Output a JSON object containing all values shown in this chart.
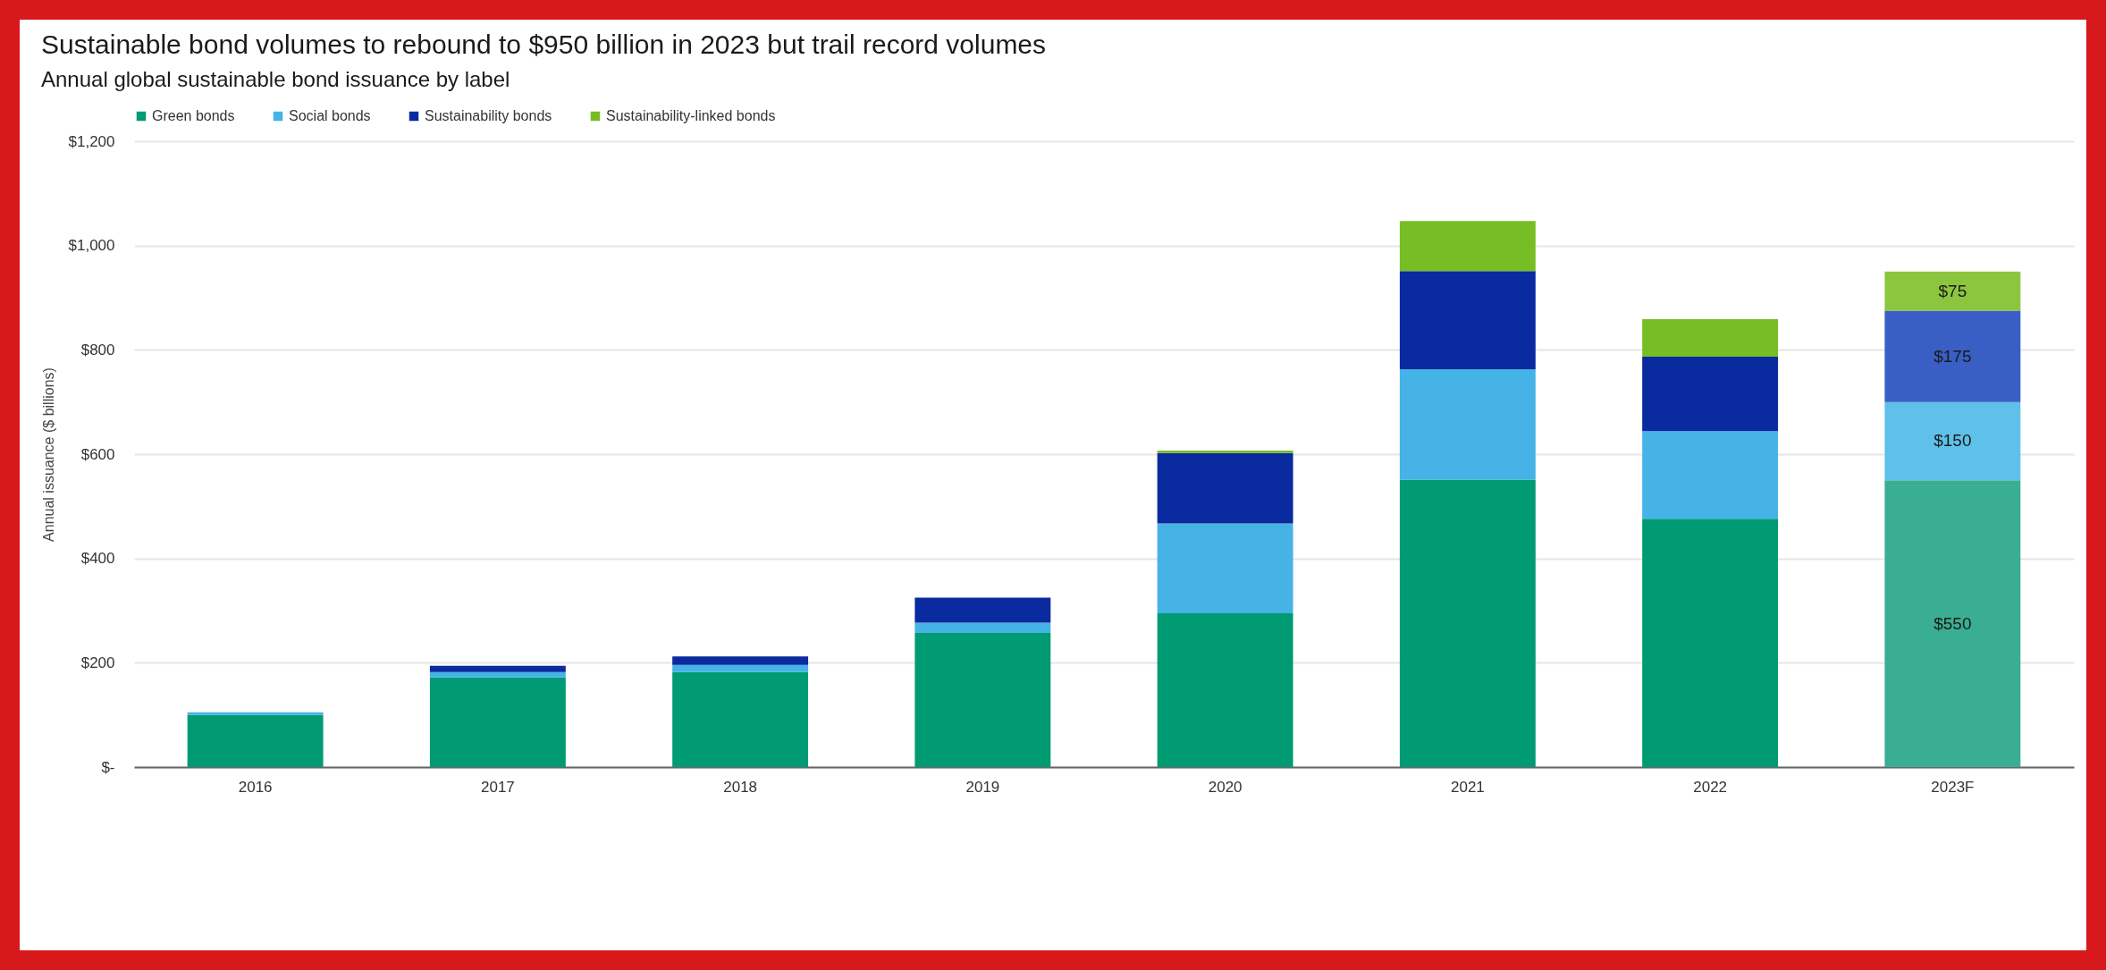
{
  "chart_data": {
    "type": "bar",
    "stacked": true,
    "title": "Sustainable bond volumes to rebound to $950 billion in 2023 but trail record volumes",
    "subtitle": "Annual global sustainable bond issuance by label",
    "ylabel": "Annual issuance ($ billions)",
    "categories": [
      "2016",
      "2017",
      "2018",
      "2019",
      "2020",
      "2021",
      "2022",
      "2023F"
    ],
    "series": [
      {
        "name": "Green bonds",
        "color": "#009b72",
        "colors": [
          "#009b72",
          "#009b72",
          "#009b72",
          "#009b72",
          "#009b72",
          "#009b72",
          "#009b72",
          "#3aae92"
        ],
        "values": [
          100,
          172,
          182,
          257,
          295,
          551,
          476,
          550
        ],
        "value_labels": [
          null,
          null,
          null,
          null,
          null,
          null,
          null,
          "$550"
        ]
      },
      {
        "name": "Social bonds",
        "color": "#45b3e6",
        "colors": [
          "#45b3e6",
          "#45b3e6",
          "#45b3e6",
          "#45b3e6",
          "#45b3e6",
          "#45b3e6",
          "#45b3e6",
          "#5fc0ea"
        ],
        "values": [
          5,
          10,
          14,
          20,
          172,
          212,
          168,
          150
        ],
        "value_labels": [
          null,
          null,
          null,
          null,
          null,
          null,
          null,
          "$150"
        ]
      },
      {
        "name": "Sustainability bonds",
        "color": "#0a2a9f",
        "colors": [
          "#0a2a9f",
          "#0a2a9f",
          "#0a2a9f",
          "#0a2a9f",
          "#0a2a9f",
          "#0a2a9f",
          "#0a2a9f",
          "#3a5fc4"
        ],
        "values": [
          0,
          12,
          16,
          48,
          135,
          188,
          143,
          175
        ],
        "value_labels": [
          null,
          null,
          null,
          null,
          null,
          null,
          null,
          "$175"
        ]
      },
      {
        "name": "Sustainability-linked bonds",
        "color": "#76be24",
        "colors": [
          "#76be24",
          "#76be24",
          "#76be24",
          "#76be24",
          "#76be24",
          "#76be24",
          "#76be24",
          "#8cc63f"
        ],
        "values": [
          0,
          0,
          0,
          0,
          5,
          96,
          72,
          75
        ],
        "value_labels": [
          null,
          null,
          null,
          null,
          null,
          null,
          null,
          "$75"
        ]
      }
    ],
    "ylim": [
      0,
      1200
    ],
    "yticks": [
      {
        "value": 0,
        "label": "$-"
      },
      {
        "value": 200,
        "label": "$200"
      },
      {
        "value": 400,
        "label": "$400"
      },
      {
        "value": 600,
        "label": "$600"
      },
      {
        "value": 800,
        "label": "$800"
      },
      {
        "value": 1000,
        "label": "$1,000"
      },
      {
        "value": 1200,
        "label": "$1,200"
      }
    ],
    "grid": "y",
    "legend": "top"
  }
}
